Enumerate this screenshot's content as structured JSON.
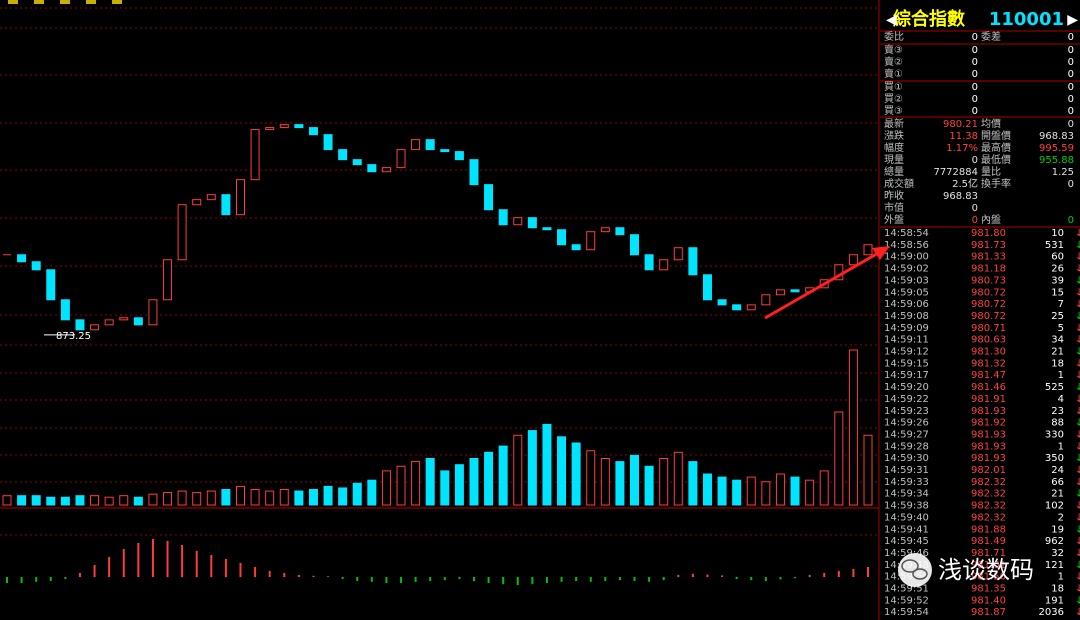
{
  "header": {
    "name": "綜合指數",
    "code": "110001"
  },
  "order_book": {
    "rows": [
      [
        "委比",
        "0",
        "委差",
        "0"
      ],
      [
        "賣③",
        "0",
        "0"
      ],
      [
        "賣②",
        "0",
        "0"
      ],
      [
        "賣①",
        "0",
        "0"
      ],
      [
        "買①",
        "0",
        "0"
      ],
      [
        "買②",
        "0",
        "0"
      ],
      [
        "買③",
        "0",
        "0"
      ]
    ]
  },
  "quote": {
    "rows": [
      [
        {
          "label": "最新",
          "value": "980.21",
          "color": "#ff4040"
        },
        {
          "label": "均價",
          "value": "0",
          "color": "#e0e0e0"
        }
      ],
      [
        {
          "label": "漲跌",
          "value": "11.38",
          "color": "#ff4040"
        },
        {
          "label": "開盤價",
          "value": "968.83",
          "color": "#e0e0e0"
        }
      ],
      [
        {
          "label": "幅度",
          "value": "1.17%",
          "color": "#ff4040"
        },
        {
          "label": "最高價",
          "value": "995.59",
          "color": "#ff4040"
        }
      ],
      [
        {
          "label": "現量",
          "value": "0",
          "color": "#e0e0e0"
        },
        {
          "label": "最低價",
          "value": "955.88",
          "color": "#00d000"
        }
      ],
      [
        {
          "label": "總量",
          "value": "7772884",
          "color": "#e0e0e0"
        },
        {
          "label": "量比",
          "value": "1.25",
          "color": "#e0e0e0"
        }
      ],
      [
        {
          "label": "成交額",
          "value": "2.5亿",
          "color": "#e0e0e0"
        },
        {
          "label": "換手率",
          "value": "0",
          "color": "#e0e0e0"
        }
      ],
      [
        {
          "label": "昨收",
          "value": "968.83",
          "color": "#e0e0e0"
        }
      ],
      [
        {
          "label": "市值",
          "value": "0",
          "color": "#e0e0e0"
        }
      ],
      [
        {
          "label": "外盤",
          "value": "0",
          "color": "#ff4040"
        },
        {
          "label": "內盤",
          "value": "0",
          "color": "#00d000"
        }
      ]
    ]
  },
  "ticks": [
    [
      "14:58:54",
      "981.80",
      "10"
    ],
    [
      "14:58:56",
      "981.73",
      "531"
    ],
    [
      "14:59:00",
      "981.33",
      "60"
    ],
    [
      "14:59:02",
      "981.18",
      "26"
    ],
    [
      "14:59:03",
      "980.73",
      "39"
    ],
    [
      "14:59:05",
      "980.72",
      "15"
    ],
    [
      "14:59:06",
      "980.72",
      "7"
    ],
    [
      "14:59:08",
      "980.72",
      "25"
    ],
    [
      "14:59:09",
      "980.71",
      "5"
    ],
    [
      "14:59:11",
      "980.63",
      "34"
    ],
    [
      "14:59:12",
      "981.30",
      "21"
    ],
    [
      "14:59:15",
      "981.32",
      "18"
    ],
    [
      "14:59:17",
      "981.47",
      "1"
    ],
    [
      "14:59:20",
      "981.46",
      "525"
    ],
    [
      "14:59:22",
      "981.91",
      "4"
    ],
    [
      "14:59:23",
      "981.93",
      "23"
    ],
    [
      "14:59:26",
      "981.92",
      "88"
    ],
    [
      "14:59:27",
      "981.93",
      "330"
    ],
    [
      "14:59:28",
      "981.93",
      "1"
    ],
    [
      "14:59:30",
      "981.93",
      "350"
    ],
    [
      "14:59:31",
      "982.01",
      "24"
    ],
    [
      "14:59:33",
      "982.32",
      "66"
    ],
    [
      "14:59:34",
      "982.32",
      "21"
    ],
    [
      "14:59:38",
      "982.32",
      "102"
    ],
    [
      "14:59:40",
      "982.32",
      "2"
    ],
    [
      "14:59:41",
      "981.88",
      "19"
    ],
    [
      "14:59:45",
      "981.49",
      "962"
    ],
    [
      "14:59:46",
      "981.71",
      "32"
    ],
    [
      "14:59:48",
      "981.61",
      "121"
    ],
    [
      "14:59:50",
      "981.50",
      "1"
    ],
    [
      "14:59:51",
      "981.35",
      "18"
    ],
    [
      "14:59:52",
      "981.40",
      "191"
    ],
    [
      "14:59:54",
      "981.87",
      "2036"
    ]
  ],
  "watermark": "浅谈数码",
  "chart_data": {
    "type": "candlestick",
    "values": [
      969.7,
      961.3,
      951.6,
      915.5,
      891.3,
      879.3,
      885.3,
      891.3,
      893.8,
      885.3,
      915.5,
      963.7,
      1030.0,
      1036.1,
      1042.1,
      1018.0,
      1060.2,
      1120.5,
      1122.9,
      1126.5,
      1122.9,
      1114.4,
      1096.4,
      1084.3,
      1078.3,
      1069.8,
      1074.7,
      1096.4,
      1108.4,
      1096.4,
      1094.0,
      1084.3,
      1054.2,
      1024.0,
      1005.9,
      1014.4,
      1002.3,
      999.9,
      981.8,
      975.8,
      997.5,
      1002.3,
      993.9,
      969.7,
      951.6,
      963.7,
      978.2,
      945.6,
      915.5,
      909.4,
      903.4,
      909.4,
      921.5,
      927.5,
      925.1,
      929.9,
      939.6,
      957.7,
      969.7,
      981.8
    ],
    "ylim": [
      861,
      1267
    ],
    "low": 873.25,
    "colors": {
      "up": "#ff3c3c",
      "down": "#00e5ff"
    },
    "volume": {
      "values": [
        6,
        6,
        6,
        5,
        5,
        6,
        6,
        5,
        6,
        5,
        7,
        8,
        9,
        8,
        9,
        10,
        12,
        10,
        9,
        10,
        9,
        10,
        12,
        11,
        14,
        16,
        22,
        25,
        28,
        30,
        22,
        26,
        30,
        34,
        38,
        45,
        48,
        52,
        44,
        40,
        35,
        30,
        28,
        32,
        25,
        30,
        34,
        28,
        20,
        18,
        16,
        18,
        15,
        20,
        18,
        16,
        22,
        60,
        100,
        45
      ],
      "ylim": [
        0,
        100
      ]
    },
    "macd": {
      "values": [
        -0.15,
        -0.15,
        -0.12,
        -0.1,
        -0.05,
        0.1,
        0.3,
        0.5,
        0.7,
        0.85,
        0.95,
        0.9,
        0.8,
        0.65,
        0.55,
        0.45,
        0.35,
        0.25,
        0.15,
        0.1,
        0.05,
        0.03,
        0.02,
        -0.05,
        -0.1,
        -0.12,
        -0.15,
        -0.15,
        -0.12,
        -0.1,
        -0.08,
        -0.05,
        -0.1,
        -0.15,
        -0.18,
        -0.2,
        -0.18,
        -0.15,
        -0.12,
        -0.1,
        -0.12,
        -0.1,
        -0.08,
        -0.1,
        -0.12,
        -0.08,
        0.05,
        0.08,
        0.06,
        0.04,
        -0.05,
        -0.08,
        -0.1,
        -0.06,
        -0.03,
        0.05,
        0.1,
        0.15,
        0.2,
        0.25
      ],
      "ylim": [
        -1,
        1
      ]
    }
  }
}
